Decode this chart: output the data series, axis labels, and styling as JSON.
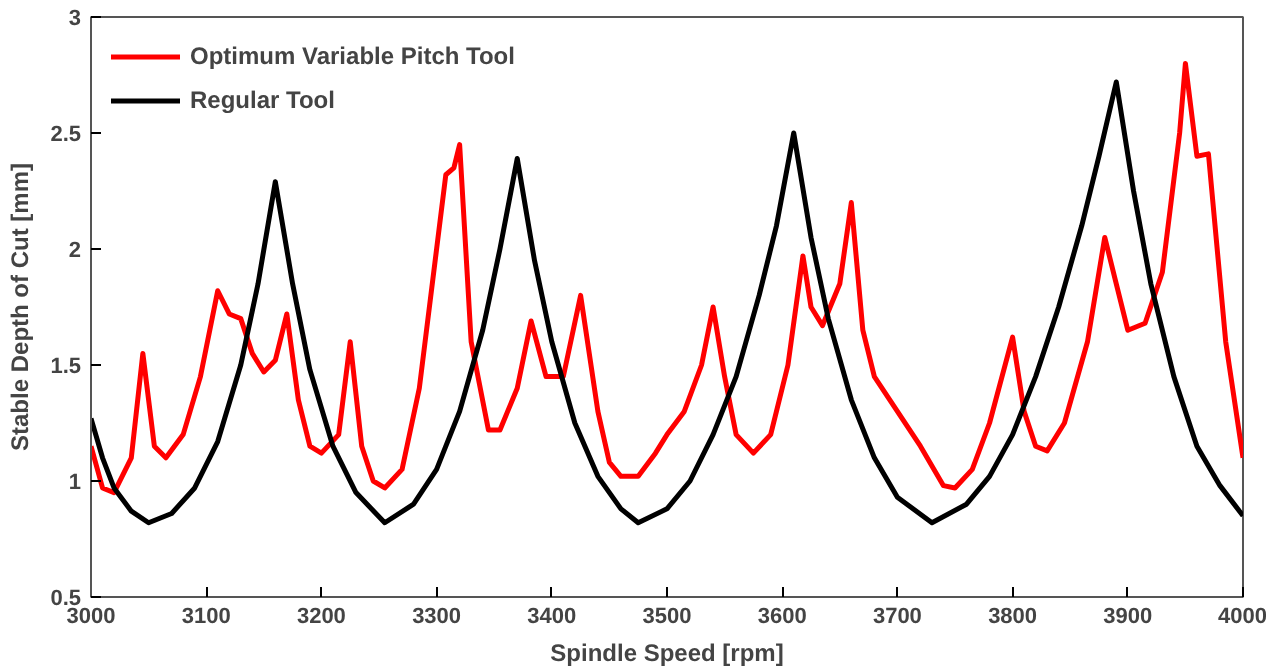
{
  "chart_data": {
    "type": "line",
    "xlabel": "Spindle Speed [rpm]",
    "ylabel": "Stable Depth of Cut [mm]",
    "xlim": [
      3000,
      4000
    ],
    "xticks": [
      3000,
      3100,
      3200,
      3300,
      3400,
      3500,
      3600,
      3700,
      3800,
      3900,
      4000
    ],
    "ylim": [
      0.5,
      3
    ],
    "yticks": [
      0.5,
      1,
      1.5,
      2,
      2.5,
      3
    ],
    "grid": false,
    "legend": "top left",
    "line_style": "solid",
    "marker": "none",
    "series": [
      {
        "name": "Optimum Variable Pitch Tool",
        "color": "#ff0000",
        "x": [
          3000,
          3010,
          3020,
          3035,
          3045,
          3055,
          3065,
          3080,
          3095,
          3110,
          3120,
          3130,
          3140,
          3150,
          3160,
          3170,
          3180,
          3190,
          3200,
          3215,
          3225,
          3235,
          3245,
          3255,
          3270,
          3285,
          3300,
          3308,
          3315,
          3320,
          3330,
          3345,
          3355,
          3370,
          3382,
          3395,
          3410,
          3425,
          3440,
          3450,
          3460,
          3475,
          3490,
          3500,
          3515,
          3530,
          3540,
          3550,
          3560,
          3575,
          3590,
          3605,
          3618,
          3625,
          3635,
          3650,
          3660,
          3670,
          3680,
          3700,
          3720,
          3740,
          3750,
          3765,
          3780,
          3800,
          3810,
          3820,
          3830,
          3845,
          3865,
          3880,
          3890,
          3900,
          3915,
          3930,
          3945,
          3950,
          3960,
          3970,
          3985,
          4000
        ],
        "values": [
          1.15,
          0.97,
          0.95,
          1.1,
          1.55,
          1.15,
          1.1,
          1.2,
          1.45,
          1.82,
          1.72,
          1.7,
          1.55,
          1.47,
          1.52,
          1.72,
          1.35,
          1.15,
          1.12,
          1.2,
          1.6,
          1.15,
          1.0,
          0.97,
          1.05,
          1.4,
          2.0,
          2.32,
          2.35,
          2.45,
          1.6,
          1.22,
          1.22,
          1.4,
          1.69,
          1.45,
          1.45,
          1.8,
          1.3,
          1.08,
          1.02,
          1.02,
          1.12,
          1.2,
          1.3,
          1.5,
          1.75,
          1.45,
          1.2,
          1.12,
          1.2,
          1.5,
          1.97,
          1.75,
          1.67,
          1.85,
          2.2,
          1.65,
          1.45,
          1.3,
          1.15,
          0.98,
          0.97,
          1.05,
          1.25,
          1.62,
          1.3,
          1.15,
          1.13,
          1.25,
          1.6,
          2.05,
          1.85,
          1.65,
          1.68,
          1.9,
          2.5,
          2.8,
          2.4,
          2.41,
          1.6,
          1.1
        ]
      },
      {
        "name": "Regular Tool",
        "color": "#000000",
        "x": [
          3000,
          3010,
          3020,
          3035,
          3050,
          3070,
          3090,
          3110,
          3130,
          3145,
          3160,
          3175,
          3190,
          3210,
          3230,
          3255,
          3280,
          3300,
          3320,
          3340,
          3355,
          3370,
          3385,
          3400,
          3420,
          3440,
          3460,
          3475,
          3500,
          3520,
          3540,
          3560,
          3580,
          3595,
          3610,
          3625,
          3640,
          3660,
          3680,
          3700,
          3730,
          3760,
          3780,
          3800,
          3820,
          3840,
          3860,
          3875,
          3890,
          3905,
          3920,
          3940,
          3960,
          3980,
          4000
        ],
        "values": [
          1.27,
          1.1,
          0.97,
          0.87,
          0.82,
          0.86,
          0.97,
          1.17,
          1.5,
          1.85,
          2.29,
          1.85,
          1.48,
          1.15,
          0.95,
          0.82,
          0.9,
          1.05,
          1.3,
          1.65,
          2.0,
          2.39,
          1.95,
          1.6,
          1.25,
          1.02,
          0.88,
          0.82,
          0.88,
          1.0,
          1.2,
          1.45,
          1.8,
          2.1,
          2.5,
          2.05,
          1.7,
          1.35,
          1.1,
          0.93,
          0.82,
          0.9,
          1.02,
          1.2,
          1.45,
          1.75,
          2.1,
          2.4,
          2.72,
          2.25,
          1.85,
          1.45,
          1.15,
          0.98,
          0.85
        ]
      }
    ]
  }
}
